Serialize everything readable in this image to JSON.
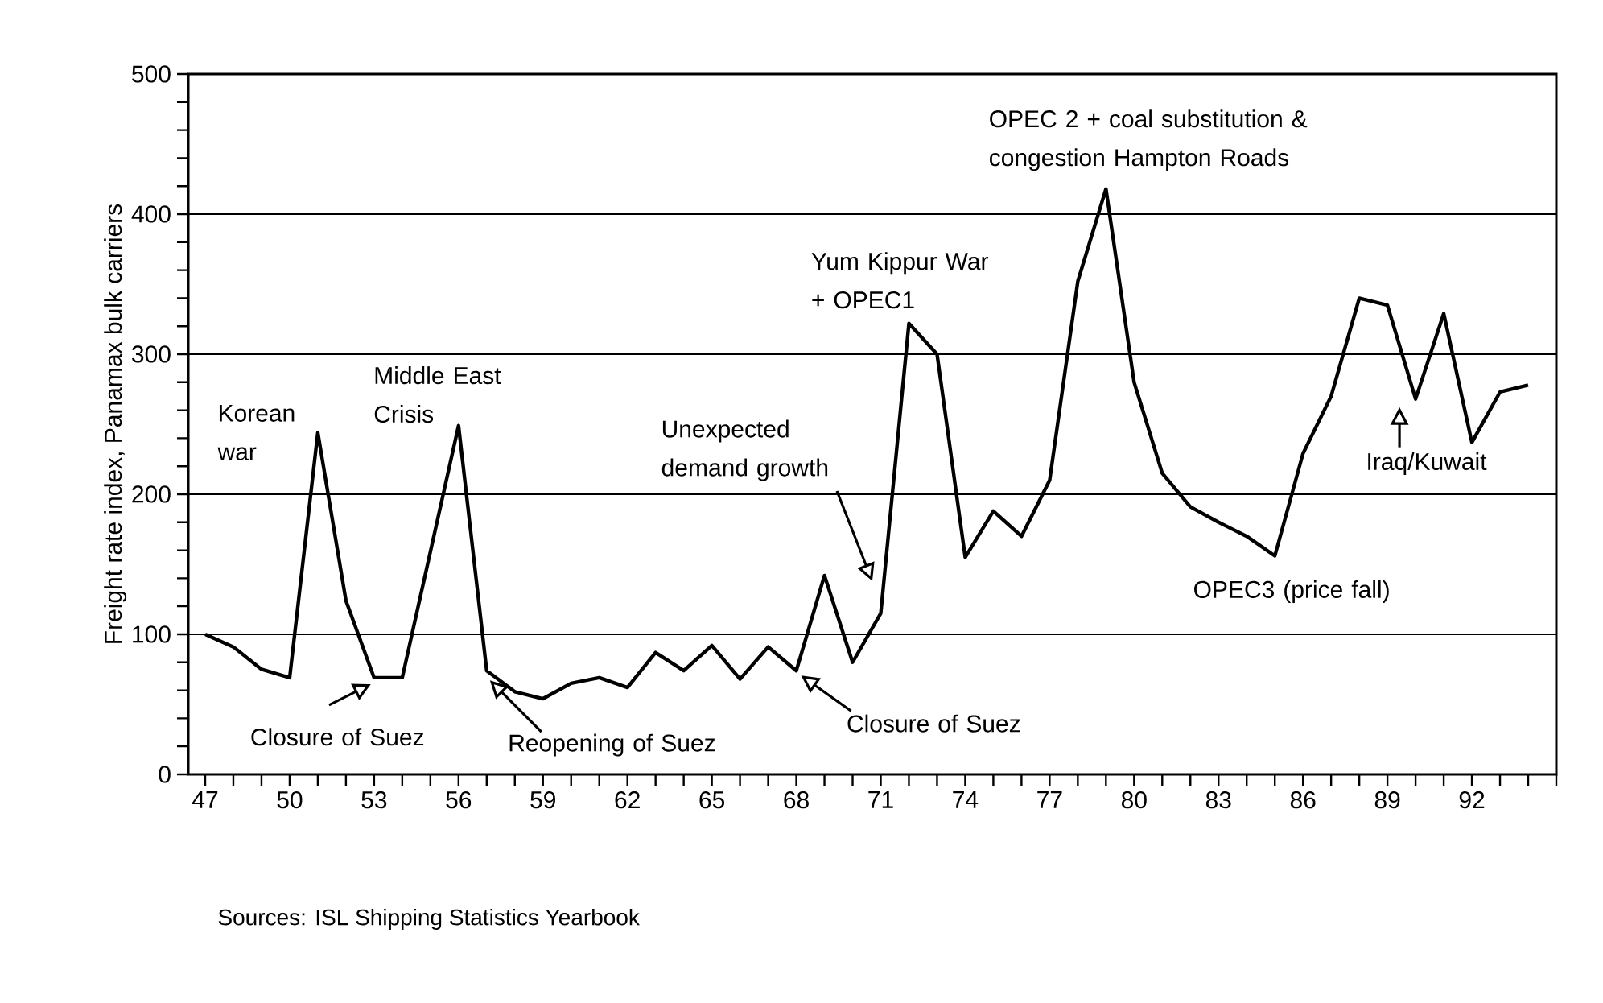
{
  "chart_data": {
    "type": "line",
    "ylabel": "Freight rate index, Panamax bulk carriers",
    "x": [
      47,
      48,
      49,
      50,
      51,
      52,
      53,
      54,
      55,
      56,
      57,
      58,
      59,
      60,
      61,
      62,
      63,
      64,
      65,
      66,
      67,
      68,
      69,
      70,
      71,
      72,
      73,
      74,
      75,
      76,
      77,
      78,
      79,
      80,
      81,
      82,
      83,
      84,
      85,
      86,
      87,
      88,
      89,
      90,
      91,
      92,
      93,
      94
    ],
    "series": [
      {
        "color": "#000000",
        "values": [
          100,
          91,
          75,
          69,
          244,
          124,
          69,
          69,
          159,
          249,
          74,
          59,
          54,
          65,
          69,
          62,
          87,
          74,
          92,
          68,
          91,
          74,
          142,
          80,
          115,
          322,
          300,
          155,
          188,
          170,
          210,
          352,
          418,
          280,
          215,
          191,
          180,
          170,
          156,
          229,
          270,
          340,
          335,
          268,
          329,
          237,
          273,
          278
        ]
      }
    ],
    "xlim": [
      46.4,
      95
    ],
    "xticks": [
      47,
      {
        "value": 48,
        "label": null
      },
      {
        "value": 49,
        "label": null
      },
      50,
      {
        "value": 51,
        "label": null
      },
      {
        "value": 52,
        "label": null
      },
      53,
      {
        "value": 54,
        "label": null
      },
      {
        "value": 55,
        "label": null
      },
      56,
      {
        "value": 57,
        "label": null
      },
      {
        "value": 58,
        "label": null
      },
      59,
      {
        "value": 60,
        "label": null
      },
      {
        "value": 61,
        "label": null
      },
      62,
      {
        "value": 63,
        "label": null
      },
      {
        "value": 64,
        "label": null
      },
      65,
      {
        "value": 66,
        "label": null
      },
      {
        "value": 67,
        "label": null
      },
      68,
      {
        "value": 69,
        "label": null
      },
      {
        "value": 70,
        "label": null
      },
      71,
      {
        "value": 72,
        "label": null
      },
      {
        "value": 73,
        "label": null
      },
      74,
      {
        "value": 75,
        "label": null
      },
      {
        "value": 76,
        "label": null
      },
      77,
      {
        "value": 78,
        "label": null
      },
      {
        "value": 79,
        "label": null
      },
      80,
      {
        "value": 81,
        "label": null
      },
      {
        "value": 82,
        "label": null
      },
      83,
      {
        "value": 84,
        "label": null
      },
      {
        "value": 85,
        "label": null
      },
      86,
      {
        "value": 87,
        "label": null
      },
      {
        "value": 88,
        "label": null
      },
      89,
      {
        "value": 90,
        "label": null
      },
      {
        "value": 91,
        "label": null
      },
      92,
      {
        "value": 93,
        "label": null
      },
      {
        "value": 94,
        "label": null
      },
      {
        "value": 95,
        "label": null
      }
    ],
    "ylim": [
      0,
      500
    ],
    "yticks": [
      0,
      {
        "value": 20,
        "label": null
      },
      {
        "value": 40,
        "label": null
      },
      {
        "value": 60,
        "label": null
      },
      {
        "value": 80,
        "label": null
      },
      100,
      {
        "value": 120,
        "label": null
      },
      {
        "value": 140,
        "label": null
      },
      {
        "value": 160,
        "label": null
      },
      {
        "value": 180,
        "label": null
      },
      200,
      {
        "value": 220,
        "label": null
      },
      {
        "value": 240,
        "label": null
      },
      {
        "value": 260,
        "label": null
      },
      {
        "value": 280,
        "label": null
      },
      300,
      {
        "value": 320,
        "label": null
      },
      {
        "value": 340,
        "label": null
      },
      {
        "value": 360,
        "label": null
      },
      {
        "value": 380,
        "label": null
      },
      400,
      {
        "value": 420,
        "label": null
      },
      {
        "value": 440,
        "label": null
      },
      {
        "value": 460,
        "label": null
      },
      {
        "value": 480,
        "label": null
      },
      500
    ],
    "grid": "y",
    "marker": "none",
    "line_style": "solid",
    "annotations": [
      {
        "text": "Korean war",
        "x": 51,
        "y": 244
      },
      {
        "text": "Middle East Crisis",
        "x": 56,
        "y": 249
      },
      {
        "text": "Closure of Suez",
        "x": 53,
        "y": 69
      },
      {
        "text": "Reopening of Suez",
        "x": 57,
        "y": 74
      },
      "Unexpected demand growth",
      {
        "text": "Closure of Suez",
        "x": 68,
        "y": 74
      },
      {
        "text": "Yum Kippur War + OPEC1",
        "x": 72,
        "y": 322
      },
      {
        "text": "OPEC 2 + coal substitution & congestion Hampton Roads",
        "x": 79,
        "y": 418
      },
      {
        "text": "OPEC3 (price fall)",
        "x": 85,
        "y": 156
      },
      {
        "text": "Iraq/Kuwait",
        "x": 90,
        "y": 268
      },
      "Sources: ISL Shipping Statistics Yearbook"
    ]
  }
}
